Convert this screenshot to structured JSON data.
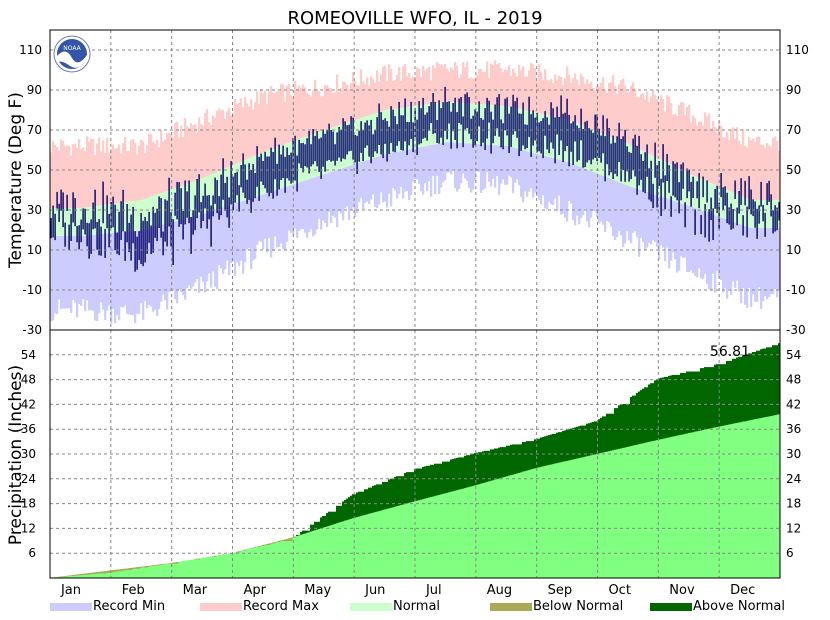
{
  "chart_data": [
    {
      "type": "area",
      "panel": "temperature",
      "title": "ROMEOVILLE  WFO, IL - 2019",
      "ylabel": "Temperature (Deg F)",
      "ylim": [
        -30,
        120
      ],
      "yticks": [
        -30,
        -10,
        10,
        30,
        50,
        70,
        90,
        110
      ],
      "months": [
        "Jan",
        "Feb",
        "Mar",
        "Apr",
        "May",
        "Jun",
        "Jul",
        "Aug",
        "Sep",
        "Oct",
        "Nov",
        "Dec"
      ],
      "grid": true,
      "record_max_by_month": [
        62,
        62,
        75,
        87,
        92,
        98,
        100,
        100,
        97,
        91,
        78,
        64
      ],
      "record_min_by_month": [
        -20,
        -22,
        -8,
        10,
        25,
        35,
        45,
        42,
        30,
        15,
        0,
        -14
      ],
      "normal_high_by_month": [
        31,
        35,
        46,
        59,
        70,
        80,
        84,
        82,
        75,
        63,
        48,
        35
      ],
      "normal_low_by_month": [
        17,
        20,
        28,
        38,
        48,
        58,
        64,
        62,
        54,
        42,
        32,
        21
      ],
      "observed_high_by_month": [
        34,
        30,
        40,
        60,
        68,
        78,
        86,
        82,
        82,
        68,
        42,
        38
      ],
      "observed_low_by_month": [
        18,
        5,
        20,
        38,
        48,
        58,
        66,
        62,
        58,
        44,
        26,
        22
      ],
      "series": [
        {
          "name": "Record Min",
          "color": "#ccccff"
        },
        {
          "name": "Record Max",
          "color": "#ffcccc"
        },
        {
          "name": "Normal",
          "color": "#ccffcc"
        },
        {
          "color": "#000066"
        }
      ]
    },
    {
      "type": "area",
      "panel": "precipitation",
      "ylabel": "Precipitation (Inches)",
      "ylim": [
        0,
        60
      ],
      "yticks": [
        6,
        12,
        18,
        24,
        30,
        36,
        42,
        48,
        54
      ],
      "grid": true,
      "total_label": "56.81",
      "normal_cumulative_by_month_end": [
        1.8,
        3.6,
        6.0,
        9.8,
        14.5,
        18.5,
        22.4,
        26.6,
        30.0,
        33.4,
        36.6,
        39.6
      ],
      "observed_cumulative_by_month_end": [
        1.3,
        3.6,
        6.0,
        9.6,
        20.3,
        26.3,
        30.2,
        33.6,
        38.0,
        48.2,
        51.8,
        56.81
      ],
      "series": [
        {
          "name": "Below Normal",
          "color": "#aaaa55"
        },
        {
          "name": "Above Normal",
          "color": "#006600"
        },
        {
          "color": "#80ff80"
        }
      ]
    }
  ],
  "legend": [
    {
      "name": "Record Min",
      "color": "#ccccff"
    },
    {
      "name": "Record Max",
      "color": "#ffcccc"
    },
    {
      "name": "Normal",
      "color": "#ccffcc"
    },
    {
      "name": "Below Normal",
      "color": "#aaaa55"
    },
    {
      "name": "Above Normal",
      "color": "#006600"
    }
  ],
  "logo": {
    "text": "NOAA",
    "icon": "noaa-logo-icon"
  }
}
